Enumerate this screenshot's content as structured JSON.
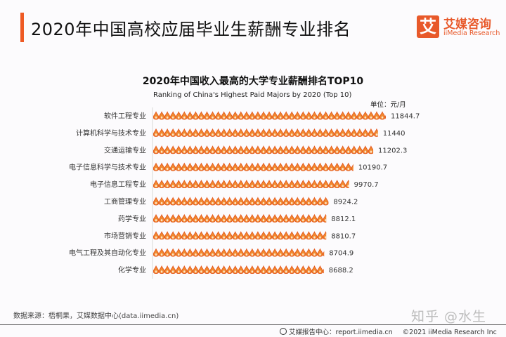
{
  "header": {
    "title": "2020年中国高校应届毕业生薪酬专业排名",
    "logo_mark": "艾",
    "logo_cn": "艾媒咨询",
    "logo_en": "iiMedia Research",
    "accent_color": "#ee5a24"
  },
  "chart_data": {
    "type": "bar",
    "orientation": "horizontal",
    "mark_style": "pictogram-droplet",
    "title": "2020年中国收入最高的大学专业薪酬排名TOP10",
    "subtitle": "Ranking of China's Highest Paid Majors by 2020 (Top 10)",
    "unit": "单位：元/月",
    "categories": [
      "软件工程专业",
      "计算机科学与技术专业",
      "交通运输专业",
      "电子信息科学与技术专业",
      "电子信息工程专业",
      "工商管理专业",
      "药学专业",
      "市场营销专业",
      "电气工程及其自动化专业",
      "化学专业"
    ],
    "values": [
      11844.7,
      11440,
      11202.3,
      10190.7,
      9970.7,
      8924.2,
      8812.1,
      8810.7,
      8704.9,
      8688.2
    ],
    "value_labels": [
      "11844.7",
      "11440",
      "11202.3",
      "10190.7",
      "9970.7",
      "8924.2",
      "8812.1",
      "8810.7",
      "8704.9",
      "8688.2"
    ],
    "xlim": [
      0,
      12000
    ],
    "grid": false,
    "color": "#f08a30",
    "outline_color": "#e4571d"
  },
  "footer": {
    "source": "数据来源：梧桐果，艾媒数据中心(data.iimedia.cn)",
    "watermark": "知乎 @水生",
    "report_center": "艾媒报告中心：report.iimedia.cn",
    "copyright": "©2021  iiMedia Research  Inc"
  }
}
